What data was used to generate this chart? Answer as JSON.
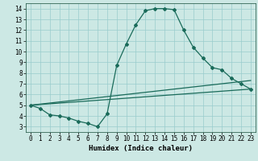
{
  "xlabel": "Humidex (Indice chaleur)",
  "background_color": "#cce8e4",
  "grid_color": "#99cccc",
  "line_color": "#1a6b5a",
  "xlim": [
    -0.5,
    23.5
  ],
  "ylim": [
    2.5,
    14.5
  ],
  "xticks": [
    0,
    1,
    2,
    3,
    4,
    5,
    6,
    7,
    8,
    9,
    10,
    11,
    12,
    13,
    14,
    15,
    16,
    17,
    18,
    19,
    20,
    21,
    22,
    23
  ],
  "yticks": [
    3,
    4,
    5,
    6,
    7,
    8,
    9,
    10,
    11,
    12,
    13,
    14
  ],
  "line1_x": [
    0,
    1,
    2,
    3,
    4,
    5,
    6,
    7,
    8,
    9,
    10,
    11,
    12,
    13,
    14,
    15,
    16,
    17,
    18,
    19,
    20,
    21,
    22,
    23
  ],
  "line1_y": [
    5.0,
    4.7,
    4.1,
    4.0,
    3.8,
    3.5,
    3.3,
    3.0,
    4.2,
    8.7,
    10.7,
    12.5,
    13.8,
    14.0,
    14.0,
    13.9,
    12.0,
    10.4,
    9.4,
    8.5,
    8.3,
    7.5,
    7.0,
    6.5
  ],
  "line2_x": [
    0,
    23
  ],
  "line2_y": [
    5.0,
    6.5
  ],
  "line3_x": [
    0,
    23
  ],
  "line3_y": [
    5.0,
    7.3
  ],
  "marker": "D",
  "marker_size": 2.0,
  "linewidth": 0.9,
  "xlabel_fontsize": 6.5,
  "tick_fontsize": 5.5
}
